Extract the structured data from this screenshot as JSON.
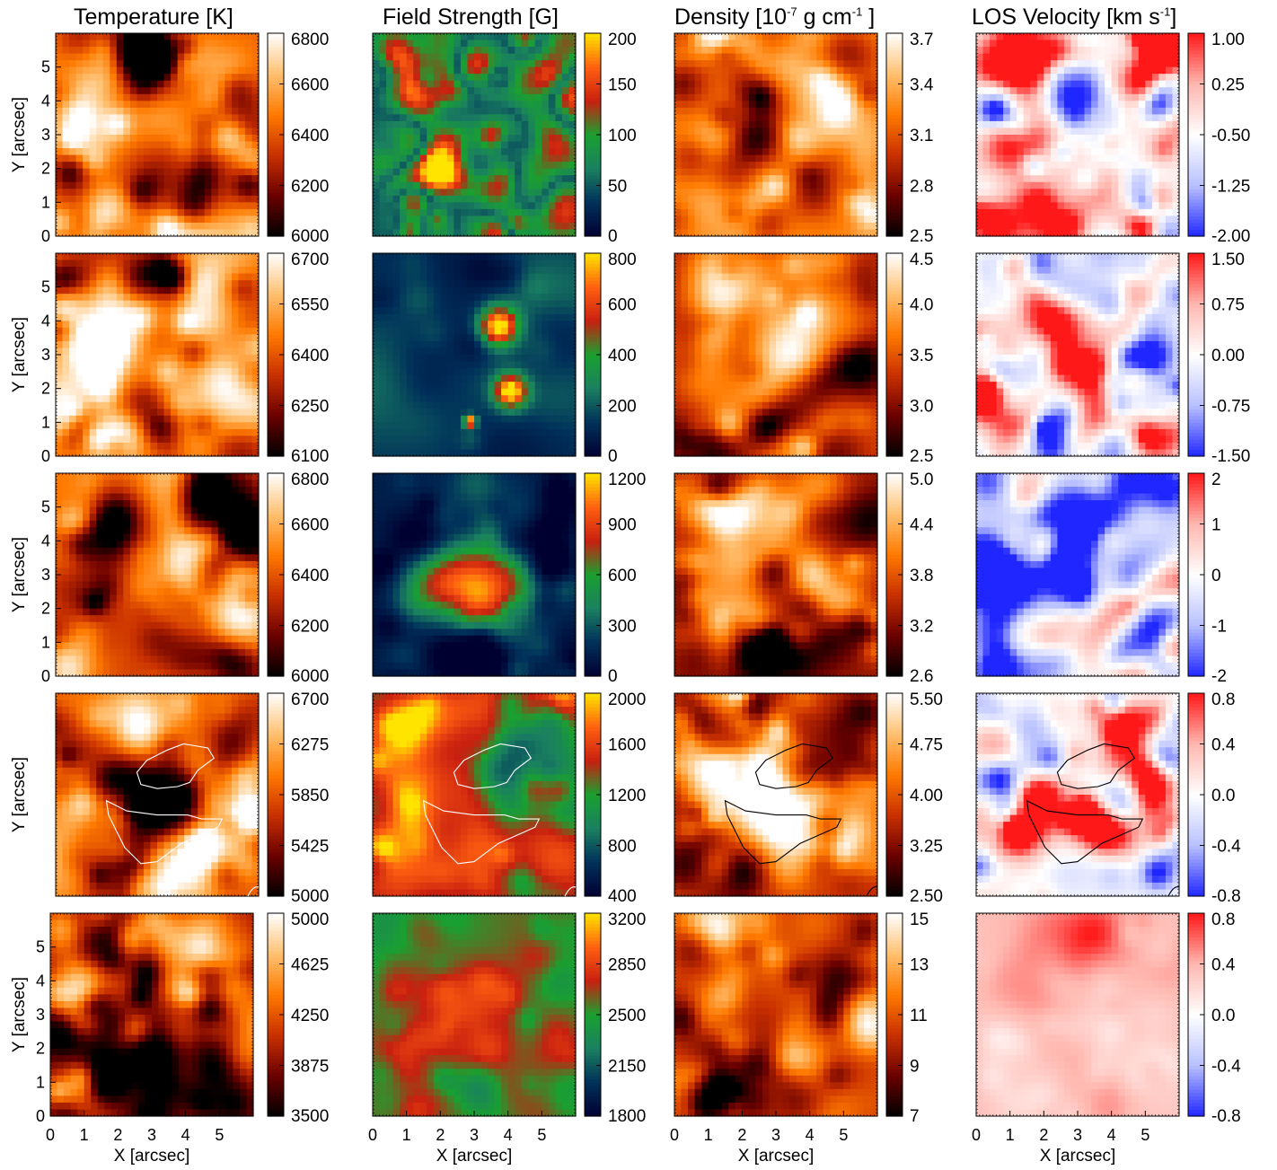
{
  "chart_data": {
    "type": "heatmap",
    "columns": [
      {
        "id": "temperature",
        "title_main": "Temperature [K]",
        "title_sup": "",
        "title_tail": "",
        "cmap": "hot"
      },
      {
        "id": "field",
        "title_main": "Field Strength [G]",
        "title_sup": "",
        "title_tail": "",
        "cmap": "field"
      },
      {
        "id": "density",
        "title_main": "Density [10",
        "title_sup": "-7",
        "title_tail": " g cm",
        "title_sup2": "-1",
        "title_tail2": " ]",
        "cmap": "hot"
      },
      {
        "id": "velocity",
        "title_main": "LOS Velocity [km s",
        "title_sup": "-1",
        "title_tail": "]",
        "cmap": "bwr"
      }
    ],
    "xlabel": "X [arcsec]",
    "ylabel": "Y [arcsec]",
    "xlim": [
      0,
      6
    ],
    "ylim": [
      0,
      6
    ],
    "x_ticks": [
      "0",
      "1",
      "2",
      "3",
      "4",
      "5"
    ],
    "y_ticks": [
      "0",
      "1",
      "2",
      "3",
      "4",
      "5"
    ],
    "rows": [
      {
        "show_y_ticks": true,
        "show_x_ticks": false,
        "contours": false,
        "colorbars": [
          {
            "ticks": [
              "6000",
              "6200",
              "6400",
              "6600",
              "6800"
            ],
            "range": [
              6000,
              6800
            ]
          },
          {
            "ticks": [
              "0",
              "50",
              "100",
              "150",
              "200"
            ],
            "range": [
              0,
              200
            ]
          },
          {
            "ticks": [
              "2.5",
              "2.8",
              "3.1",
              "3.4",
              "3.7"
            ],
            "range": [
              2.5,
              3.7
            ]
          },
          {
            "ticks": [
              "-2.00",
              "-1.25",
              "-0.50",
              "0.25",
              "1.00"
            ],
            "range": [
              -2.0,
              1.0
            ]
          }
        ]
      },
      {
        "show_y_ticks": true,
        "show_x_ticks": false,
        "contours": false,
        "colorbars": [
          {
            "ticks": [
              "6100",
              "6250",
              "6400",
              "6550",
              "6700"
            ],
            "range": [
              6100,
              6700
            ]
          },
          {
            "ticks": [
              "0",
              "200",
              "400",
              "600",
              "800"
            ],
            "range": [
              0,
              800
            ]
          },
          {
            "ticks": [
              "2.5",
              "3.0",
              "3.5",
              "4.0",
              "4.5"
            ],
            "range": [
              2.5,
              4.5
            ]
          },
          {
            "ticks": [
              "-1.50",
              "-0.75",
              "0.00",
              "0.75",
              "1.50"
            ],
            "range": [
              -1.5,
              1.5
            ]
          }
        ]
      },
      {
        "show_y_ticks": true,
        "show_x_ticks": false,
        "contours": false,
        "colorbars": [
          {
            "ticks": [
              "6000",
              "6200",
              "6400",
              "6600",
              "6800"
            ],
            "range": [
              6000,
              6800
            ]
          },
          {
            "ticks": [
              "0",
              "300",
              "600",
              "900",
              "1200"
            ],
            "range": [
              0,
              1200
            ]
          },
          {
            "ticks": [
              "2.6",
              "3.2",
              "3.8",
              "4.4",
              "5.0"
            ],
            "range": [
              2.6,
              5.0
            ]
          },
          {
            "ticks": [
              "-2",
              "-1",
              "0",
              "1",
              "2"
            ],
            "range": [
              -2,
              2
            ]
          }
        ]
      },
      {
        "show_y_ticks": false,
        "show_x_ticks": false,
        "contours": true,
        "colorbars": [
          {
            "ticks": [
              "5000",
              "5425",
              "5850",
              "6275",
              "6700"
            ],
            "range": [
              5000,
              6700
            ]
          },
          {
            "ticks": [
              "400",
              "800",
              "1200",
              "1600",
              "2000"
            ],
            "range": [
              400,
              2000
            ]
          },
          {
            "ticks": [
              "2.50",
              "3.25",
              "4.00",
              "4.75",
              "5.50"
            ],
            "range": [
              2.5,
              5.5
            ]
          },
          {
            "ticks": [
              "-0.8",
              "-0.4",
              "0.0",
              "0.4",
              "0.8"
            ],
            "range": [
              -0.8,
              0.8
            ]
          }
        ]
      },
      {
        "show_y_ticks": true,
        "show_x_ticks": true,
        "contours": false,
        "colorbars": [
          {
            "ticks": [
              "3500",
              "3875",
              "4250",
              "4625",
              "5000"
            ],
            "range": [
              3500,
              5000
            ]
          },
          {
            "ticks": [
              "1800",
              "2150",
              "2500",
              "2850",
              "3200"
            ],
            "range": [
              1800,
              3200
            ]
          },
          {
            "ticks": [
              "7",
              "9",
              "11",
              "13",
              "15"
            ],
            "range": [
              7,
              15
            ]
          },
          {
            "ticks": [
              "-0.8",
              "-0.4",
              "0.0",
              "0.4",
              "0.8"
            ],
            "range": [
              -0.8,
              0.8
            ]
          }
        ]
      }
    ],
    "grid": false,
    "legend": "none",
    "colors": {
      "hot": [
        "#000000",
        "#6a0000",
        "#c83000",
        "#ff7a00",
        "#ffc070",
        "#ffffff"
      ],
      "field": [
        "#000030",
        "#00305a",
        "#1a8060",
        "#1aa030",
        "#c82010",
        "#ff6010",
        "#ffe400"
      ],
      "bwr": [
        "#1f26ff",
        "#b8c0ff",
        "#ffffff",
        "#ffb8b0",
        "#ff1818"
      ]
    }
  }
}
